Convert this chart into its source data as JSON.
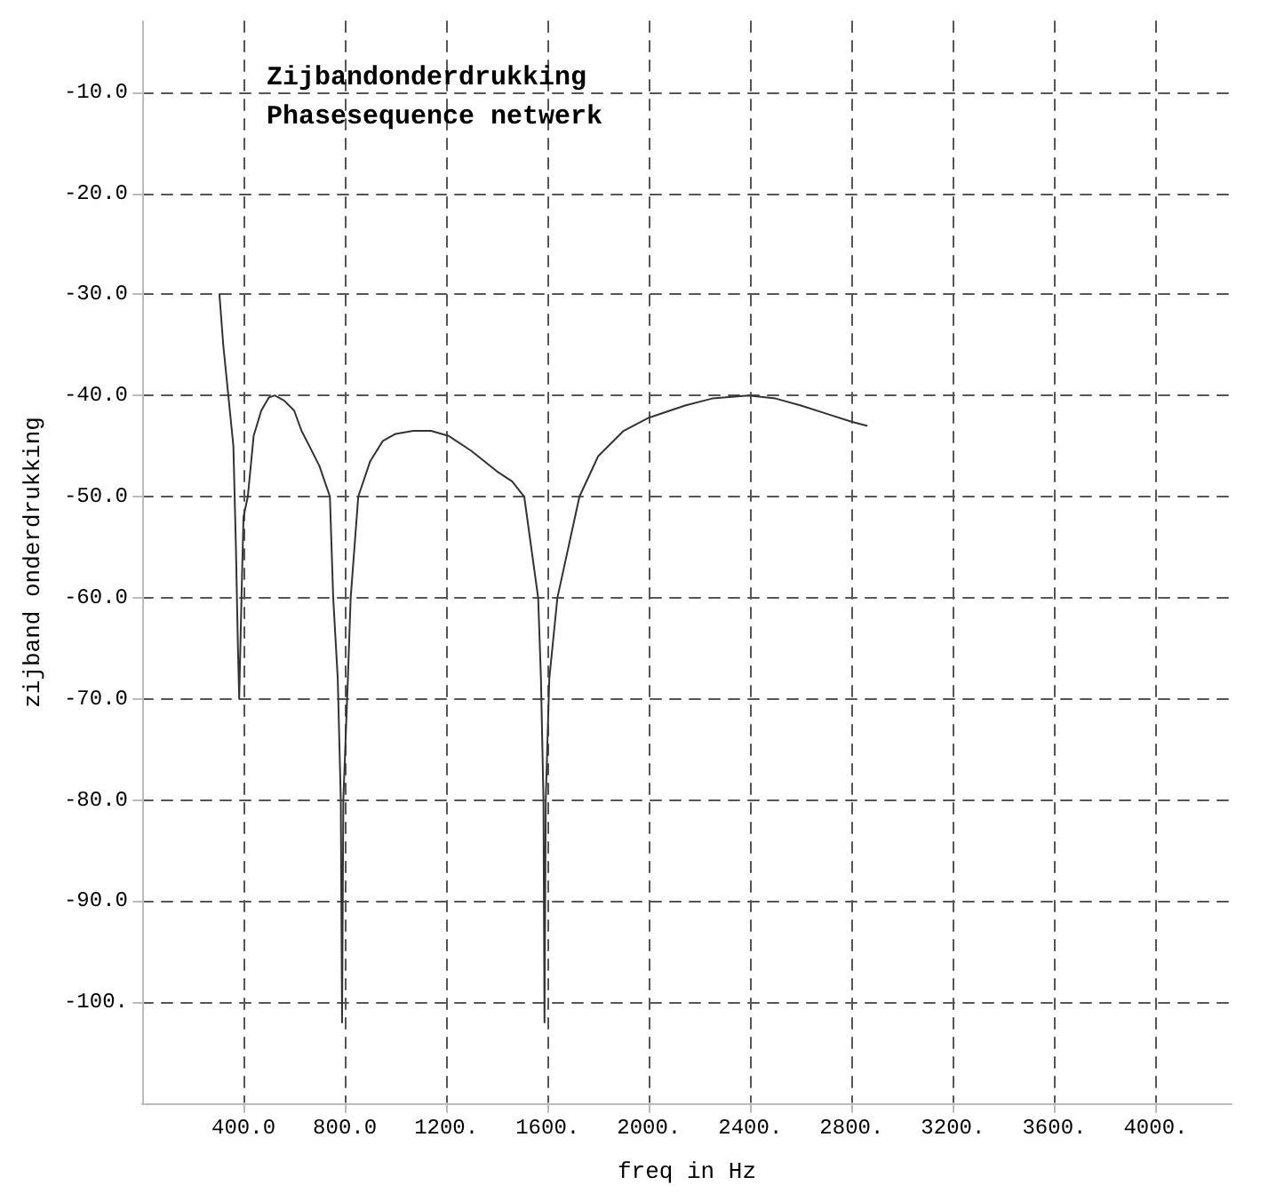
{
  "chart_data": {
    "type": "line",
    "title": "Zijbandonderdrukking\nPhasesequence netwerk",
    "xlabel": "freq in Hz",
    "ylabel": "zijband onderdrukking",
    "x": [
      305,
      320,
      340,
      360,
      370,
      378,
      383,
      392,
      400,
      417,
      440,
      470,
      500,
      523,
      560,
      600,
      629,
      660,
      700,
      741,
      754,
      772,
      784,
      789,
      794,
      812,
      823,
      853,
      900,
      950,
      1000,
      1070,
      1140,
      1210,
      1300,
      1400,
      1460,
      1508,
      1563,
      1574,
      1584,
      1588,
      1593,
      1607,
      1639,
      1726,
      1800,
      1900,
      2000,
      2143,
      2250,
      2393,
      2500,
      2600,
      2700,
      2800,
      2860
    ],
    "series": [
      {
        "color": "#333333",
        "values": [
          -30,
          -35,
          -40,
          -45,
          -55,
          -65,
          -70,
          -60,
          -52,
          -50,
          -44,
          -41.5,
          -40.2,
          -40,
          -40.5,
          -41.5,
          -43.5,
          -45,
          -47,
          -50,
          -60,
          -68,
          -80,
          -102,
          -80,
          -68,
          -60,
          -50,
          -46.5,
          -44.5,
          -43.8,
          -43.5,
          -43.5,
          -44,
          -45.5,
          -47.5,
          -48.5,
          -50,
          -60,
          -68,
          -80,
          -102,
          -80,
          -68,
          -60,
          -50,
          -46,
          -43.5,
          -42.2,
          -41,
          -40.3,
          -40,
          -40.3,
          -41,
          -41.8,
          -42.6,
          -43
        ]
      }
    ],
    "xlim": [
      0,
      4300
    ],
    "xticks": [
      {
        "value": 400,
        "label": "400.0"
      },
      {
        "value": 800,
        "label": "800.0"
      },
      {
        "value": 1200,
        "label": "1200."
      },
      {
        "value": 1600,
        "label": "1600."
      },
      {
        "value": 2000,
        "label": "2000."
      },
      {
        "value": 2400,
        "label": "2400."
      },
      {
        "value": 2800,
        "label": "2800."
      },
      {
        "value": 3200,
        "label": "3200."
      },
      {
        "value": 3600,
        "label": "3600."
      },
      {
        "value": 4000,
        "label": "4000."
      }
    ],
    "ylim": [
      -110,
      -3
    ],
    "yticks": [
      {
        "value": -100,
        "label": "-100."
      },
      {
        "value": -90,
        "label": "-90.0"
      },
      {
        "value": -80,
        "label": "-80.0"
      },
      {
        "value": -70,
        "label": "-70.0"
      },
      {
        "value": -60,
        "label": "-60.0"
      },
      {
        "value": -50,
        "label": "-50.0"
      },
      {
        "value": -40,
        "label": "-40.0"
      },
      {
        "value": -30,
        "label": "-30.0"
      },
      {
        "value": -20,
        "label": "-20.0"
      },
      {
        "value": -10,
        "label": "-10.0"
      }
    ],
    "grid": true,
    "marker": "none",
    "line_style": "solid"
  }
}
